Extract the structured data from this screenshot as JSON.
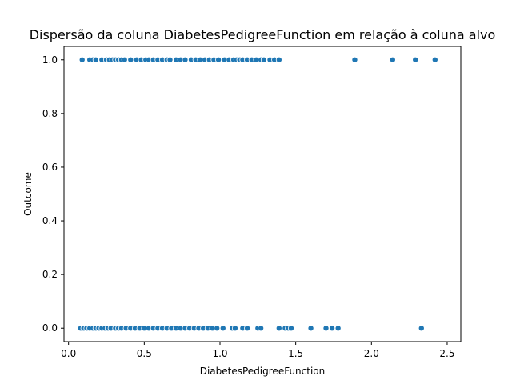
{
  "chart_data": {
    "type": "scatter",
    "title": "Dispersão da coluna DiabetesPedigreeFunction em relação à coluna alvo",
    "xlabel": "DiabetesPedigreeFunction",
    "ylabel": "Outcome",
    "xlim": [
      0.0,
      2.5
    ],
    "ylim": [
      0.0,
      1.0
    ],
    "xticks": [
      "0.0",
      "0.5",
      "1.0",
      "1.5",
      "2.0",
      "2.5"
    ],
    "yticks": [
      "0.0",
      "0.2",
      "0.4",
      "0.6",
      "0.8",
      "1.0"
    ],
    "grid": false,
    "marker_color": "#1f77b4",
    "series": [
      {
        "x": [
          0.09,
          0.14,
          0.16,
          0.18,
          0.22,
          0.25,
          0.27,
          0.29,
          0.31,
          0.33,
          0.35,
          0.37,
          0.41,
          0.45,
          0.48,
          0.51,
          0.53,
          0.56,
          0.59,
          0.62,
          0.65,
          0.67,
          0.71,
          0.74,
          0.77,
          0.81,
          0.84,
          0.87,
          0.9,
          0.93,
          0.96,
          0.99,
          1.03,
          1.06,
          1.09,
          1.11,
          1.13,
          1.15,
          1.18,
          1.21,
          1.24,
          1.27,
          1.29,
          1.33,
          1.36,
          1.39,
          1.89,
          2.14,
          2.29,
          2.42
        ],
        "y": [
          1,
          1,
          1,
          1,
          1,
          1,
          1,
          1,
          1,
          1,
          1,
          1,
          1,
          1,
          1,
          1,
          1,
          1,
          1,
          1,
          1,
          1,
          1,
          1,
          1,
          1,
          1,
          1,
          1,
          1,
          1,
          1,
          1,
          1,
          1,
          1,
          1,
          1,
          1,
          1,
          1,
          1,
          1,
          1,
          1,
          1,
          1,
          1,
          1,
          1
        ]
      },
      {
        "x": [
          0.08,
          0.1,
          0.12,
          0.14,
          0.16,
          0.18,
          0.2,
          0.22,
          0.24,
          0.26,
          0.28,
          0.31,
          0.33,
          0.35,
          0.38,
          0.41,
          0.44,
          0.47,
          0.5,
          0.53,
          0.56,
          0.59,
          0.62,
          0.65,
          0.68,
          0.71,
          0.74,
          0.77,
          0.8,
          0.83,
          0.86,
          0.89,
          0.92,
          0.95,
          0.98,
          1.02,
          1.08,
          1.1,
          1.15,
          1.18,
          1.25,
          1.27,
          1.39,
          1.43,
          1.45,
          1.47,
          1.6,
          1.7,
          1.74,
          1.78,
          2.33
        ],
        "y": [
          0,
          0,
          0,
          0,
          0,
          0,
          0,
          0,
          0,
          0,
          0,
          0,
          0,
          0,
          0,
          0,
          0,
          0,
          0,
          0,
          0,
          0,
          0,
          0,
          0,
          0,
          0,
          0,
          0,
          0,
          0,
          0,
          0,
          0,
          0,
          0,
          0,
          0,
          0,
          0,
          0,
          0,
          0,
          0,
          0,
          0,
          0,
          0,
          0,
          0,
          0
        ]
      }
    ]
  }
}
